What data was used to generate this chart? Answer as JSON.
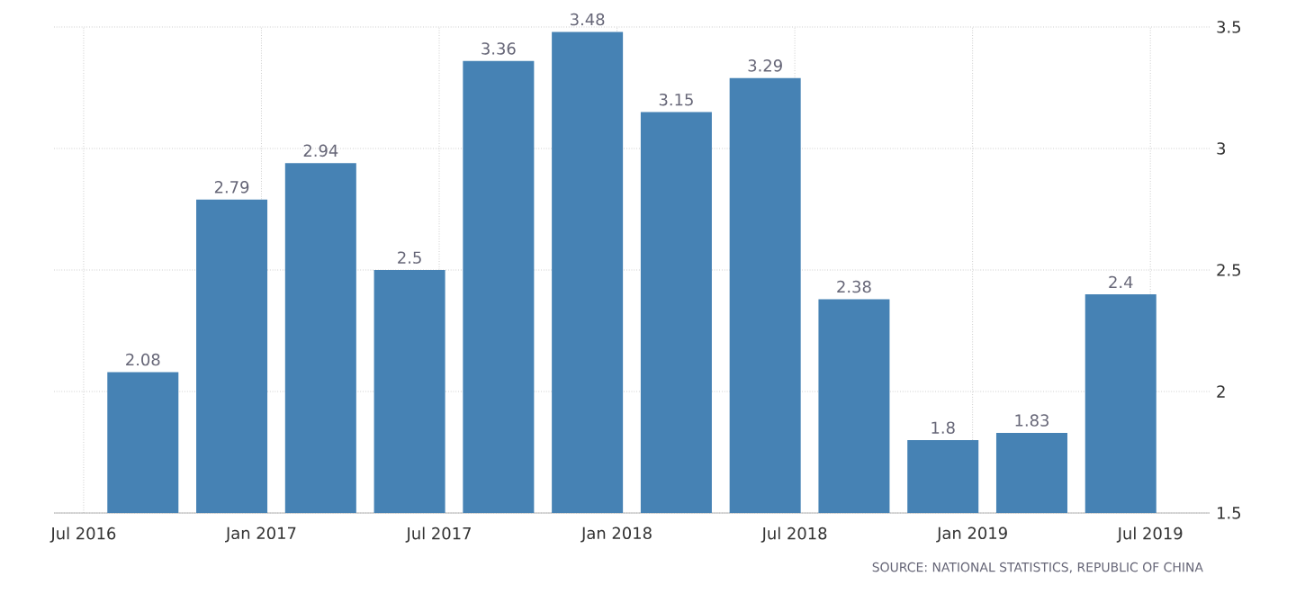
{
  "chart_data": {
    "type": "bar",
    "x": [
      "2016-09",
      "2016-12",
      "2017-03",
      "2017-06",
      "2017-09",
      "2017-12",
      "2018-03",
      "2018-06",
      "2018-09",
      "2018-12",
      "2019-03",
      "2019-06"
    ],
    "values": [
      2.08,
      2.79,
      2.94,
      2.5,
      3.36,
      3.48,
      3.15,
      3.29,
      2.38,
      1.8,
      1.83,
      2.4
    ],
    "color": "#4682b4",
    "xlim": [
      "2016-06",
      "2019-09"
    ],
    "xticks": [
      {
        "value": "2016-07",
        "label": "Jul 2016"
      },
      {
        "value": "2017-01",
        "label": "Jan 2017"
      },
      {
        "value": "2017-07",
        "label": "Jul 2017"
      },
      {
        "value": "2018-01",
        "label": "Jan 2018"
      },
      {
        "value": "2018-07",
        "label": "Jul 2018"
      },
      {
        "value": "2019-01",
        "label": "Jan 2019"
      },
      {
        "value": "2019-07",
        "label": "Jul 2019"
      }
    ],
    "ylim": [
      1.5,
      3.5
    ],
    "yticks": [
      1.5,
      2,
      2.5,
      3,
      3.5
    ],
    "grid": true,
    "data_labels": true,
    "annotations": [
      "SOURCE: NATIONAL STATISTICS, REPUBLIC OF CHINA"
    ]
  }
}
